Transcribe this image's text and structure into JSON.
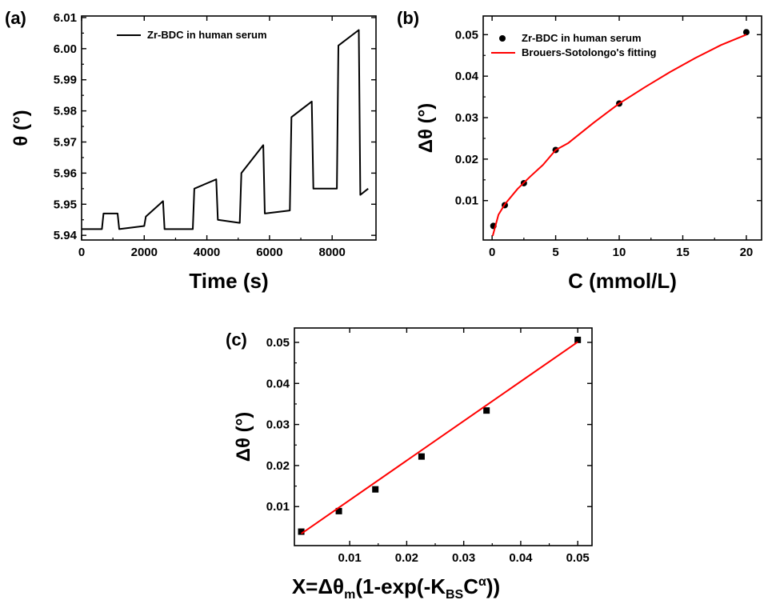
{
  "chart_data": [
    {
      "type": "line",
      "panel_label": "(a)",
      "xlabel": "Time (s)",
      "ylabel": "θ (°)",
      "xlim": [
        0,
        9400
      ],
      "ylim": [
        5.9385,
        6.0105
      ],
      "xticks": [
        0,
        2000,
        4000,
        6000,
        8000
      ],
      "yticks": [
        5.94,
        5.95,
        5.96,
        5.97,
        5.98,
        5.99,
        6.0,
        6.01
      ],
      "ytick_labels": [
        "5.94",
        "5.95",
        "5.96",
        "5.97",
        "5.98",
        "5.99",
        "6.00",
        "6.01"
      ],
      "legend": {
        "position": "top-left",
        "entries": [
          "Zr-BDC in human serum"
        ]
      },
      "series": [
        {
          "name": "Zr-BDC in human serum",
          "color": "#000000",
          "x": [
            0,
            650,
            700,
            1150,
            1200,
            2000,
            2050,
            2600,
            2650,
            3550,
            3600,
            4300,
            4350,
            5050,
            5100,
            5800,
            5850,
            6650,
            6700,
            7350,
            7400,
            8150,
            8200,
            8850,
            8900,
            9150
          ],
          "y": [
            5.942,
            5.942,
            5.947,
            5.947,
            5.942,
            5.943,
            5.946,
            5.951,
            5.942,
            5.942,
            5.955,
            5.958,
            5.945,
            5.944,
            5.96,
            5.969,
            5.947,
            5.948,
            5.978,
            5.983,
            5.955,
            5.955,
            6.001,
            6.006,
            5.953,
            5.955
          ]
        }
      ]
    },
    {
      "type": "scatter",
      "panel_label": "(b)",
      "xlabel": "C (mmol/L)",
      "ylabel": "Δθ (°)",
      "xlim": [
        -0.7,
        21.2
      ],
      "ylim": [
        0.0005,
        0.0545
      ],
      "xticks": [
        0,
        5,
        10,
        15,
        20
      ],
      "yticks": [
        0.01,
        0.02,
        0.03,
        0.04,
        0.05
      ],
      "legend": {
        "position": "top-left",
        "entries": [
          "Zr-BDC in human serum",
          "Brouers-Sotolongo's fitting"
        ]
      },
      "series": [
        {
          "name": "Zr-BDC in human serum",
          "marker": "circle",
          "color": "#000000",
          "x": [
            0.1,
            1,
            2.5,
            5,
            10,
            20
          ],
          "y": [
            0.0039,
            0.0089,
            0.0142,
            0.0222,
            0.0334,
            0.0506
          ]
        },
        {
          "name": "Brouers-Sotolongo's fitting",
          "color": "#ff0000",
          "x": [
            0.05,
            0.5,
            1,
            2,
            2.5,
            3,
            4,
            5,
            6,
            8,
            10,
            12,
            14,
            16,
            18,
            20
          ],
          "y": [
            0.0015,
            0.0066,
            0.0091,
            0.0128,
            0.0143,
            0.0158,
            0.0186,
            0.0222,
            0.0239,
            0.0288,
            0.0334,
            0.0373,
            0.041,
            0.0444,
            0.0475,
            0.05
          ]
        }
      ]
    },
    {
      "type": "scatter",
      "panel_label": "(c)",
      "xlabel": "X=Δθm(1-exp(-KBSCα))",
      "ylabel": "Δθ (°)",
      "xlim": [
        0.0003,
        0.0525
      ],
      "ylim": [
        0.0005,
        0.0535
      ],
      "xticks": [
        0.01,
        0.02,
        0.03,
        0.04,
        0.05
      ],
      "yticks": [
        0.01,
        0.02,
        0.03,
        0.04,
        0.05
      ],
      "series": [
        {
          "marker": "square",
          "color": "#000000",
          "x": [
            0.0015,
            0.0081,
            0.0145,
            0.0226,
            0.034,
            0.05
          ],
          "y": [
            0.0039,
            0.0089,
            0.0142,
            0.0222,
            0.0334,
            0.0506
          ]
        },
        {
          "color": "#ff0000",
          "x": [
            0.0015,
            0.05
          ],
          "y": [
            0.0034,
            0.0501
          ]
        }
      ]
    }
  ],
  "xlabel_c_parts": {
    "main": "X=Δθ",
    "sub1": "m",
    "mid": "(1-exp(-K",
    "sub2": "BS",
    "c": "C",
    "sup": "α",
    "end": "))"
  }
}
